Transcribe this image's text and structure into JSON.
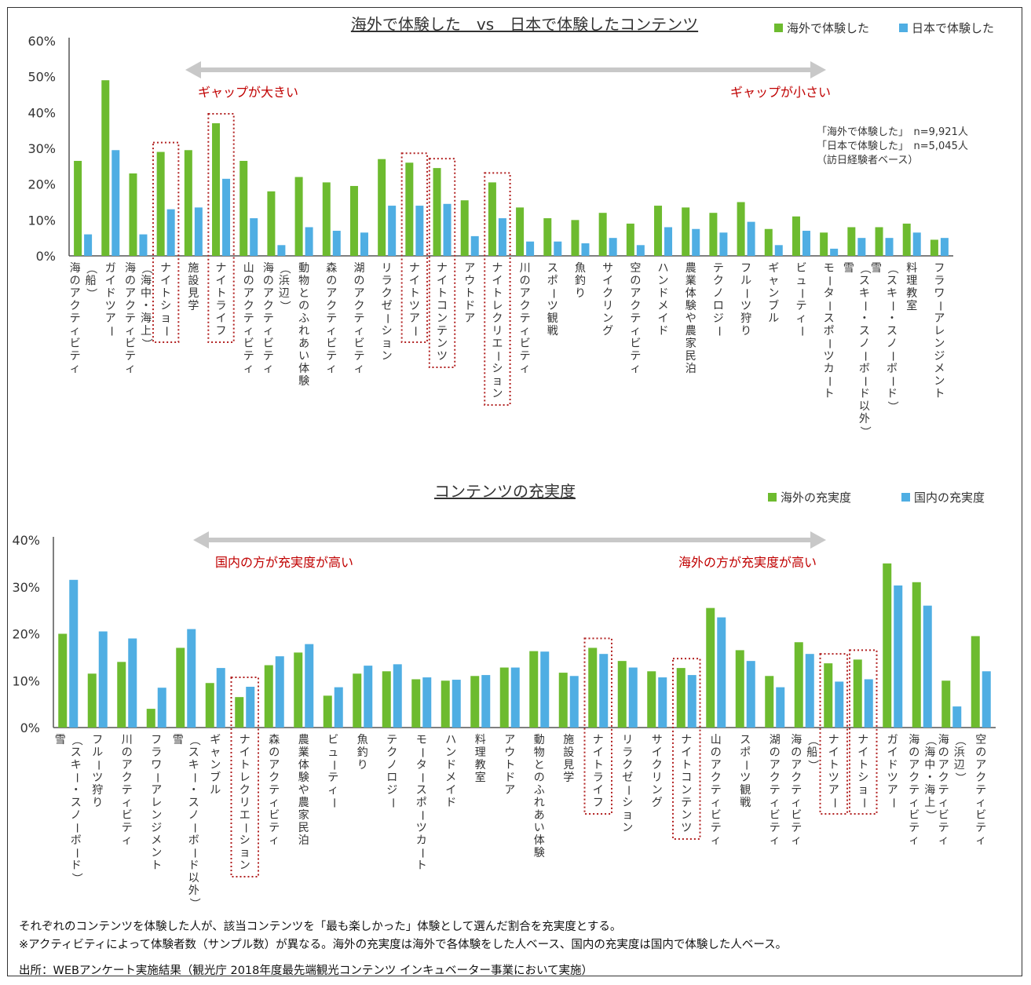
{
  "colors": {
    "green": "#6dbb2f",
    "blue": "#4faee3",
    "axis": "#555555",
    "annotation": "#c00000",
    "arrow": "#c8c8c8",
    "highlight_box": "#b22222"
  },
  "chart_data": [
    {
      "type": "bar",
      "title": "海外で体験した　vs　日本で体験したコンテンツ",
      "ylim": [
        0,
        60
      ],
      "y_ticks": [
        "0%",
        "10%",
        "20%",
        "30%",
        "40%",
        "50%",
        "60%"
      ],
      "legend_position": "top-right",
      "categories": [
        "海のアクティビティ（船）",
        "ガイドツアー",
        "海のアクティビティ（海中・海上）",
        "ナイトショー",
        "施設見学",
        "ナイトライフ",
        "山のアクティビティ",
        "海のアクティビティ（浜辺）",
        "動物とのふれあい体験",
        "森のアクティビティ",
        "湖のアクティビティ",
        "リラクゼーション",
        "ナイトツアー",
        "ナイトコンテンツ",
        "アウトドア",
        "ナイトレクリエーション",
        "川のアクティビティ",
        "スポーツ観戦",
        "魚釣り",
        "サイクリング",
        "空のアクティビティ",
        "ハンドメイド",
        "農業体験や農家民泊",
        "テクノロジー",
        "フルーツ狩り",
        "ギャンブル",
        "ビューティー",
        "モータースポーツカート",
        "雪（スキー・スノーボード以外）",
        "雪（スキー・スノーボード）",
        "料理教室",
        "フラワーアレンジメント"
      ],
      "series": [
        {
          "name": "海外で体験した",
          "color": "#6dbb2f",
          "values": [
            26.5,
            49,
            23,
            29,
            29.5,
            37,
            26.5,
            18,
            22,
            20.5,
            19.5,
            27,
            26,
            24.5,
            15.5,
            20.5,
            13.5,
            10.5,
            10,
            12,
            9,
            14,
            13.5,
            12,
            15,
            7.5,
            11,
            6.5,
            8,
            8,
            9,
            4.5
          ]
        },
        {
          "name": "日本で体験した",
          "color": "#4faee3",
          "values": [
            6,
            29.5,
            6,
            13,
            13.5,
            21.5,
            10.5,
            3,
            8,
            7,
            6.5,
            14,
            14,
            14.5,
            5.5,
            10.5,
            4,
            4,
            3.5,
            5,
            3,
            8,
            7.5,
            6.5,
            9.5,
            3,
            7,
            2,
            5,
            5,
            6.5,
            5
          ]
        }
      ],
      "annotations": {
        "gap_large": "ギャップが大きい",
        "gap_small": "ギャップが小さい",
        "sample_1": "「海外で体験した」　n=9,921人",
        "sample_2": "「日本で体験した」　n=5,045人",
        "sample_3": "（訪日経験者ベース）"
      },
      "highlighted_categories": [
        "ナイトショー",
        "ナイトライフ",
        "ナイトツアー",
        "ナイトコンテンツ",
        "ナイトレクリエーション"
      ]
    },
    {
      "type": "bar",
      "title": "コンテンツの充実度",
      "ylim": [
        0,
        40
      ],
      "y_ticks": [
        "0%",
        "10%",
        "20%",
        "30%",
        "40%"
      ],
      "legend_position": "top-right",
      "categories": [
        "雪（スキー・スノーボード）",
        "フルーツ狩り",
        "川のアクティビティ",
        "フラワーアレンジメント",
        "雪（スキー・スノーボード以外）",
        "ギャンブル",
        "ナイトレクリエーション",
        "森のアクティビティ",
        "農業体験や農家民泊",
        "ビューティー",
        "魚釣り",
        "テクノロジー",
        "モータースポーツカート",
        "ハンドメイド",
        "料理教室",
        "アウトドア",
        "動物とのふれあい体験",
        "施設見学",
        "ナイトライフ",
        "リラクゼーション",
        "サイクリング",
        "ナイトコンテンツ",
        "山のアクティビティ",
        "スポーツ観戦",
        "湖のアクティビティ",
        "海のアクティビティ（船）",
        "ナイトツアー",
        "ナイトショー",
        "ガイドツアー",
        "海のアクティビティ（海中・海上）",
        "海のアクティビティ（浜辺）",
        "空のアクティビティ"
      ],
      "series": [
        {
          "name": "海外の充実度",
          "color": "#6dbb2f",
          "values": [
            20,
            11.5,
            14,
            4,
            17,
            9.5,
            6.5,
            13.3,
            16,
            6.8,
            11.5,
            12,
            10.3,
            10,
            11,
            12.8,
            16.3,
            11.7,
            17,
            14.2,
            12,
            12.7,
            25.5,
            16.5,
            11,
            18.2,
            13.7,
            14.5,
            35,
            31,
            10,
            19.5
          ]
        },
        {
          "name": "国内の充実度",
          "color": "#4faee3",
          "values": [
            31.5,
            20.5,
            19,
            8.5,
            21,
            12.7,
            8.7,
            15.2,
            17.8,
            8.6,
            13.2,
            13.5,
            10.7,
            10.2,
            11.2,
            12.8,
            16.2,
            11,
            15.7,
            12.8,
            10.7,
            11.2,
            23.5,
            14.2,
            8.6,
            15.7,
            9.8,
            10.3,
            30.3,
            26,
            4.5,
            12
          ]
        }
      ],
      "annotations": {
        "domestic_higher": "国内の方が充実度が高い",
        "overseas_higher": "海外の方が充実度が高い"
      },
      "highlighted_categories": [
        "ナイトレクリエーション",
        "ナイトライフ",
        "ナイトコンテンツ",
        "ナイトツアー",
        "ナイトショー"
      ]
    }
  ],
  "footnotes": {
    "line1": "それぞれのコンテンツを体験した人が、該当コンテンツを「最も楽しかった」体験として選んだ割合を充実度とする。",
    "line2": "※アクティビティによって体験者数（サンプル数）が異なる。海外の充実度は海外で各体験をした人ベース、国内の充実度は国内で体験した人ベース。",
    "source": "出所：WEBアンケート実施結果（観光庁 2018年度最先端観光コンテンツ インキュベーター事業において実施）"
  }
}
